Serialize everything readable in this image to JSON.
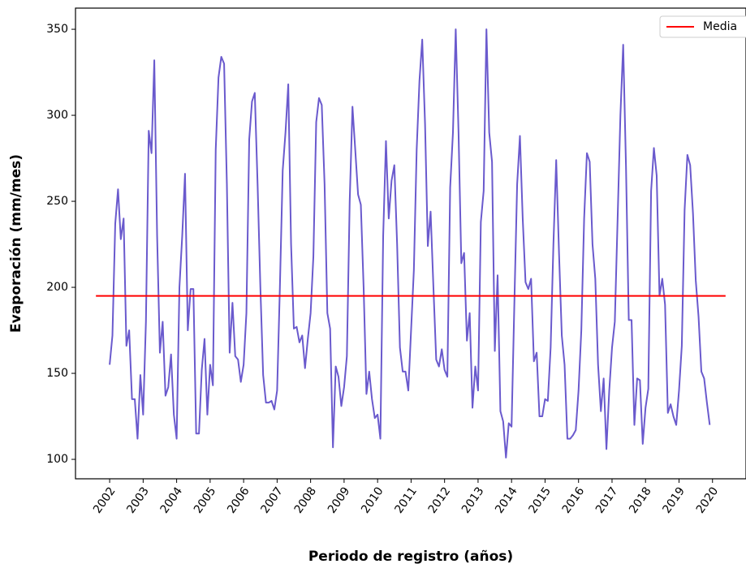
{
  "chart_data": {
    "type": "line",
    "x_label": "Periodo de registro (años)",
    "y_label": "Evaporación (mm/mes)",
    "xlim": [
      2000.98,
      2021.0
    ],
    "ylim": [
      88.7,
      362.3
    ],
    "xticks": [
      2002,
      2003,
      2004,
      2005,
      2006,
      2007,
      2008,
      2009,
      2010,
      2011,
      2012,
      2013,
      2014,
      2015,
      2016,
      2017,
      2018,
      2019,
      2020
    ],
    "yticks": [
      100,
      150,
      200,
      250,
      300,
      350
    ],
    "legend": "upper right",
    "series": [
      {
        "color": "#6a5acd",
        "x": [
          2002,
          2002.083,
          2002.167,
          2002.25,
          2002.333,
          2002.417,
          2002.5,
          2002.583,
          2002.667,
          2002.75,
          2002.833,
          2002.917,
          2003,
          2003.083,
          2003.167,
          2003.25,
          2003.333,
          2003.417,
          2003.5,
          2003.583,
          2003.667,
          2003.75,
          2003.833,
          2003.917,
          2004,
          2004.083,
          2004.167,
          2004.25,
          2004.333,
          2004.417,
          2004.5,
          2004.583,
          2004.667,
          2004.75,
          2004.833,
          2004.917,
          2005,
          2005.083,
          2005.167,
          2005.25,
          2005.333,
          2005.417,
          2005.5,
          2005.583,
          2005.667,
          2005.75,
          2005.833,
          2005.917,
          2006,
          2006.083,
          2006.167,
          2006.25,
          2006.333,
          2006.417,
          2006.5,
          2006.583,
          2006.667,
          2006.75,
          2006.833,
          2006.917,
          2007,
          2007.083,
          2007.167,
          2007.25,
          2007.333,
          2007.417,
          2007.5,
          2007.583,
          2007.667,
          2007.75,
          2007.833,
          2007.917,
          2008,
          2008.083,
          2008.167,
          2008.25,
          2008.333,
          2008.417,
          2008.5,
          2008.583,
          2008.667,
          2008.75,
          2008.833,
          2008.917,
          2009,
          2009.083,
          2009.167,
          2009.25,
          2009.333,
          2009.417,
          2009.5,
          2009.583,
          2009.667,
          2009.75,
          2009.833,
          2009.917,
          2010,
          2010.083,
          2010.167,
          2010.25,
          2010.333,
          2010.417,
          2010.5,
          2010.583,
          2010.667,
          2010.75,
          2010.833,
          2010.917,
          2011,
          2011.083,
          2011.167,
          2011.25,
          2011.333,
          2011.417,
          2011.5,
          2011.583,
          2011.667,
          2011.75,
          2011.833,
          2011.917,
          2012,
          2012.083,
          2012.167,
          2012.25,
          2012.333,
          2012.417,
          2012.5,
          2012.583,
          2012.667,
          2012.75,
          2012.833,
          2012.917,
          2013,
          2013.083,
          2013.167,
          2013.25,
          2013.333,
          2013.417,
          2013.5,
          2013.583,
          2013.667,
          2013.75,
          2013.833,
          2013.917,
          2014,
          2014.083,
          2014.167,
          2014.25,
          2014.333,
          2014.417,
          2014.5,
          2014.583,
          2014.667,
          2014.75,
          2014.833,
          2014.917,
          2015,
          2015.083,
          2015.167,
          2015.25,
          2015.333,
          2015.417,
          2015.5,
          2015.583,
          2015.667,
          2015.75,
          2015.833,
          2015.917,
          2016,
          2016.083,
          2016.167,
          2016.25,
          2016.333,
          2016.417,
          2016.5,
          2016.583,
          2016.667,
          2016.75,
          2016.833,
          2016.917,
          2017,
          2017.083,
          2017.167,
          2017.25,
          2017.333,
          2017.417,
          2017.5,
          2017.583,
          2017.667,
          2017.75,
          2017.833,
          2017.917,
          2018,
          2018.083,
          2018.167,
          2018.25,
          2018.333,
          2018.417,
          2018.5,
          2018.583,
          2018.667,
          2018.75,
          2018.833,
          2018.917,
          2019,
          2019.083,
          2019.167,
          2019.25,
          2019.333,
          2019.417,
          2019.5,
          2019.583,
          2019.667,
          2019.75,
          2019.833,
          2019.917
        ],
        "values": [
          155,
          172,
          237,
          257,
          228,
          240,
          166,
          175,
          135,
          135,
          112,
          149,
          126,
          180,
          291,
          278,
          332,
          230,
          162,
          180,
          137,
          142,
          161,
          126,
          112,
          200,
          230,
          266,
          175,
          199,
          199,
          115,
          115,
          152,
          170,
          126,
          155,
          143,
          280,
          322,
          334,
          330,
          260,
          162,
          191,
          160,
          158,
          145,
          155,
          185,
          286,
          308,
          313,
          260,
          200,
          149,
          133,
          133,
          134,
          129,
          140,
          200,
          268,
          290,
          318,
          225,
          176,
          177,
          168,
          172,
          153,
          170,
          185,
          218,
          296,
          310,
          306,
          260,
          185,
          176,
          107,
          154,
          148,
          131,
          142,
          160,
          250,
          305,
          280,
          254,
          248,
          200,
          138,
          151,
          135,
          124,
          126,
          112,
          230,
          285,
          240,
          262,
          271,
          225,
          165,
          151,
          151,
          140,
          175,
          210,
          280,
          320,
          344,
          295,
          224,
          244,
          200,
          158,
          154,
          164,
          152,
          148,
          258,
          290,
          350,
          290,
          214,
          220,
          169,
          185,
          130,
          154,
          140,
          238,
          256,
          350,
          290,
          273,
          163,
          207,
          128,
          122,
          101,
          121,
          119,
          190,
          260,
          288,
          240,
          203,
          199,
          205,
          157,
          162,
          125,
          125,
          135,
          134,
          165,
          225,
          274,
          220,
          172,
          155,
          112,
          112,
          114,
          117,
          140,
          175,
          240,
          278,
          273,
          225,
          205,
          155,
          128,
          147,
          106,
          140,
          165,
          180,
          240,
          300,
          341,
          270,
          181,
          181,
          120,
          147,
          146,
          109,
          130,
          141,
          256,
          281,
          265,
          195,
          205,
          190,
          127,
          132,
          125,
          120,
          140,
          166,
          245,
          277,
          271,
          243,
          204,
          183,
          151,
          147,
          133,
          120
        ]
      },
      {
        "name": "Media",
        "color": "#ff0000",
        "x": [
          2001.59,
          2020.39
        ],
        "values": [
          195,
          195
        ]
      }
    ]
  }
}
